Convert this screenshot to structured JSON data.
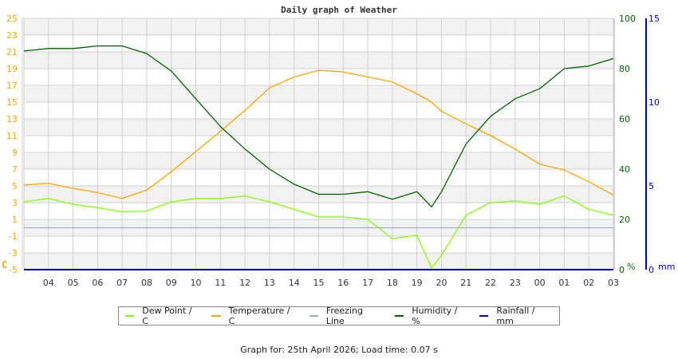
{
  "title": "Daily graph of Weather",
  "footer": "Graph for: 25th April 2026; Load time: 0.07 s",
  "colors": {
    "dew_point": "#7fff00",
    "temperature": "#ffa500",
    "freezing_line": "#a0b0c0",
    "humidity": "#006400",
    "rainfall": "#0000cc",
    "left_axis": "#ffa500",
    "humidity_axis": "#006400",
    "rain_axis": "#0000cc",
    "grid": "#d0d0d0",
    "band": "#f2f2f2"
  },
  "axes": {
    "left_unit": "C",
    "humidity_unit": "%",
    "rain_unit": "mm"
  },
  "legend": [
    {
      "label": "Dew Point / C",
      "color": "#7fff00"
    },
    {
      "label": "Temperature / C",
      "color": "#ffa500"
    },
    {
      "label": "Freezing Line",
      "color": "#a0b0c0"
    },
    {
      "label": "Humidity / %",
      "color": "#006400"
    },
    {
      "label": "Rainfall / mm",
      "color": "#0000cc"
    }
  ],
  "chart_data": {
    "type": "line",
    "title": "Daily graph of Weather",
    "xlabel": "",
    "x_ticks": [
      "04",
      "05",
      "06",
      "07",
      "08",
      "09",
      "10",
      "11",
      "12",
      "13",
      "14",
      "15",
      "16",
      "17",
      "18",
      "19",
      "20",
      "21",
      "22",
      "23",
      "00",
      "01",
      "02",
      "03"
    ],
    "x_hours": [
      0,
      1,
      2,
      3,
      4,
      5,
      6,
      7,
      8,
      9,
      10,
      11,
      12,
      13,
      14,
      15,
      16,
      16.6,
      17,
      18,
      19,
      20,
      21,
      22,
      23,
      24
    ],
    "left_axis": {
      "label": "C",
      "ticks": [
        25,
        23,
        21,
        19,
        17,
        15,
        13,
        11,
        9,
        7,
        5,
        3,
        1,
        -1,
        -3,
        -5
      ],
      "range": [
        -5,
        25
      ]
    },
    "right_axis_humidity": {
      "label": "%",
      "ticks": [
        100,
        80,
        60,
        40,
        20,
        0
      ],
      "range": [
        0,
        100
      ]
    },
    "right_axis_rain": {
      "label": "mm",
      "ticks": [
        15,
        10,
        5,
        0
      ],
      "range": [
        0,
        15
      ]
    },
    "series": [
      {
        "name": "Dew Point / C",
        "axis": "left",
        "color": "#7fff00",
        "values": [
          3.1,
          3.5,
          2.8,
          2.4,
          1.9,
          2.0,
          3.1,
          3.5,
          3.5,
          3.8,
          3.1,
          2.2,
          1.3,
          1.3,
          1.0,
          -1.3,
          -0.9,
          -4.8,
          -3.3,
          1.5,
          3.0,
          3.2,
          2.8,
          3.8,
          2.2,
          1.5
        ]
      },
      {
        "name": "Temperature / C",
        "axis": "left",
        "color": "#ffa500",
        "values": [
          5.1,
          5.3,
          4.7,
          4.2,
          3.5,
          4.5,
          6.7,
          9.1,
          11.5,
          14.0,
          16.7,
          18.0,
          18.8,
          18.6,
          18.0,
          17.4,
          16.0,
          15.0,
          13.9,
          12.4,
          11.0,
          9.4,
          7.6,
          6.9,
          5.5,
          3.9
        ]
      },
      {
        "name": "Freezing Line",
        "axis": "left",
        "color": "#a0b0c0",
        "values": [
          0,
          0,
          0,
          0,
          0,
          0,
          0,
          0,
          0,
          0,
          0,
          0,
          0,
          0,
          0,
          0,
          0,
          0,
          0,
          0,
          0,
          0,
          0,
          0,
          0,
          0
        ]
      },
      {
        "name": "Humidity / %",
        "axis": "humidity",
        "color": "#006400",
        "values": [
          87,
          88,
          88,
          89,
          89,
          86,
          79,
          68,
          57,
          48,
          40,
          34,
          30,
          30,
          31,
          28,
          31,
          25,
          31,
          50,
          61,
          68,
          72,
          80,
          81,
          84
        ]
      },
      {
        "name": "Rainfall / mm",
        "axis": "rain",
        "color": "#0000cc",
        "values": [
          0,
          0,
          0,
          0,
          0,
          0,
          0,
          0,
          0,
          0,
          0,
          0,
          0,
          0,
          0,
          0,
          0,
          0,
          0,
          0,
          0,
          0,
          0,
          0,
          0,
          0
        ]
      }
    ],
    "grid": true,
    "legend_position": "bottom"
  }
}
